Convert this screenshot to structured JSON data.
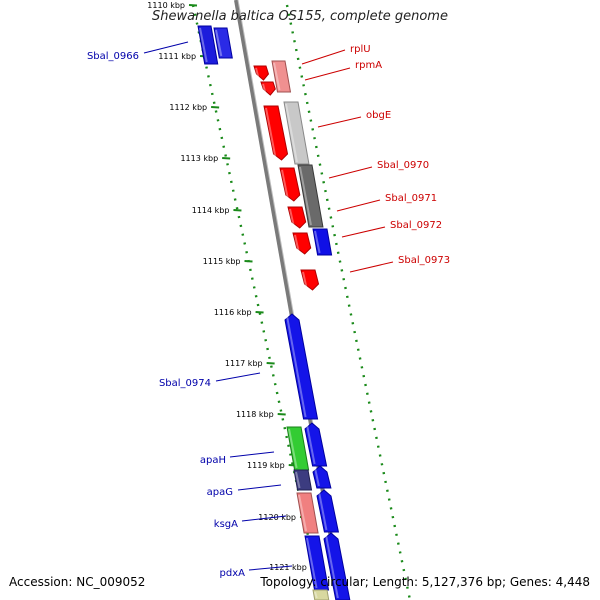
{
  "title": "Shewanella baltica OS155, complete genome",
  "accession_text": "Accession: NC_009052",
  "summary_text": "Topology: circular; Length: 5,127,376 bp; Genes: 4,448",
  "colors": {
    "forward_gene": "#ff0000",
    "reverse_gene": "#0000ff",
    "forward_label": "#cc0000",
    "reverse_label": "#0000aa",
    "axis": "#888888",
    "tick": "#1a8a1a"
  },
  "tick_labels": [
    "1110 kbp",
    "1111 kbp",
    "1112 kbp",
    "1113 kbp",
    "1114 kbp",
    "1115 kbp",
    "1116 kbp",
    "1117 kbp",
    "1118 kbp",
    "1119 kbp",
    "1120 kbp",
    "1121 kbp"
  ],
  "forward_labels": [
    "rplU",
    "rpmA",
    "obgE",
    "Sbal_0970",
    "Sbal_0971",
    "Sbal_0972",
    "Sbal_0973"
  ],
  "reverse_labels": [
    "Sbal_0966",
    "Sbal_0974",
    "apaH",
    "apaG",
    "ksgA",
    "pdxA"
  ]
}
